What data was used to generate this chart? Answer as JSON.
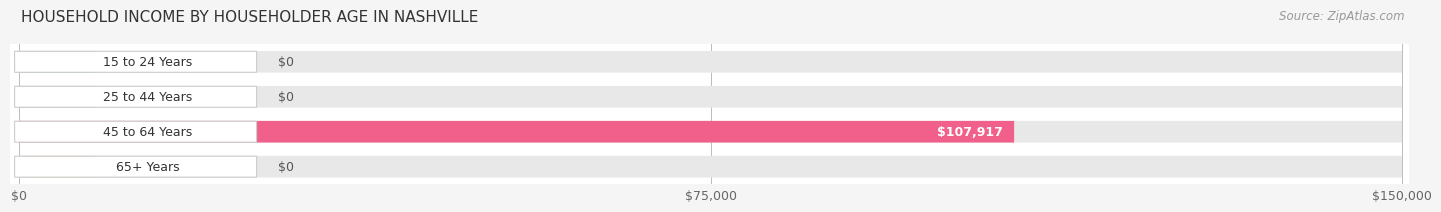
{
  "title": "HOUSEHOLD INCOME BY HOUSEHOLDER AGE IN NASHVILLE",
  "source": "Source: ZipAtlas.com",
  "categories": [
    "15 to 24 Years",
    "25 to 44 Years",
    "45 to 64 Years",
    "65+ Years"
  ],
  "values": [
    0,
    0,
    107917,
    0
  ],
  "bar_colors": [
    "#78cfd4",
    "#aab4e0",
    "#f0608a",
    "#f5c8a0"
  ],
  "bar_bg_color": "#e8e8e8",
  "label_texts": [
    "$0",
    "$0",
    "$107,917",
    "$0"
  ],
  "xmax": 150000,
  "xticks": [
    0,
    75000,
    150000
  ],
  "xticklabels": [
    "$0",
    "$75,000",
    "$150,000"
  ],
  "title_fontsize": 11,
  "source_fontsize": 8.5,
  "label_fontsize": 9,
  "ytick_fontsize": 9,
  "xtick_fontsize": 9,
  "background_color": "#f5f5f5",
  "bar_height": 0.62,
  "grid_color": "#bbbbbb",
  "row_bg_color": "#ffffff"
}
